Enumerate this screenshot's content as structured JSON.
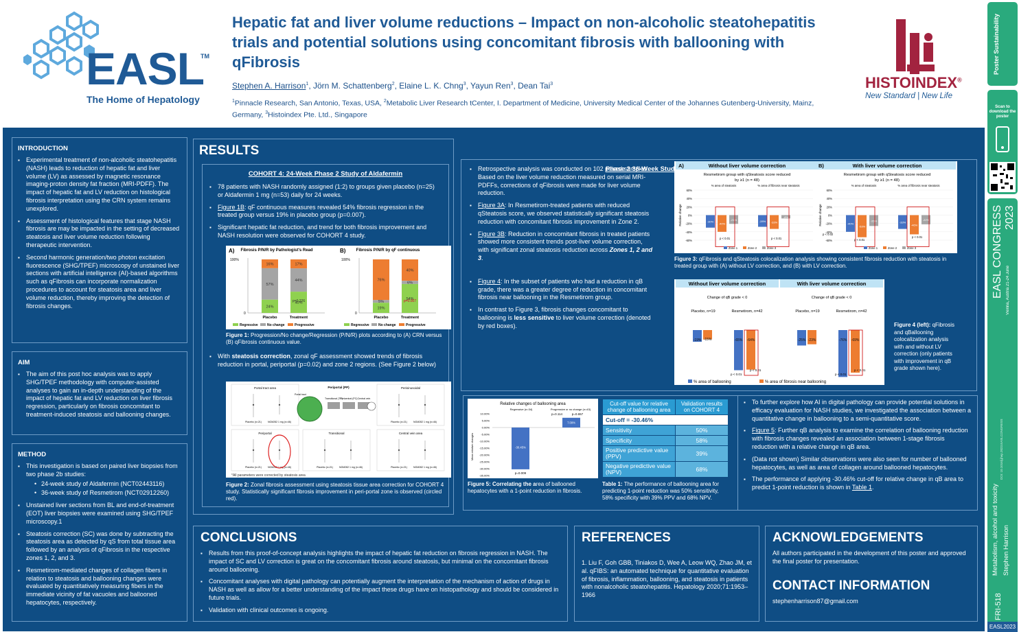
{
  "header": {
    "easl_text": "EASL",
    "easl_tm": "TM",
    "easl_tagline": "The Home of Hepatology",
    "title": "Hepatic fat and liver volume reductions – Impact on non-alcoholic steatohepatitis trials and potential solutions using concomitant fibrosis with ballooning with qFibrosis",
    "authors": [
      {
        "name": "Stephen A. Harrison",
        "sup": "1",
        "underline": true
      },
      {
        "name": ", Jörn M. Schattenberg",
        "sup": "2"
      },
      {
        "name": ", Elaine L. K. Chng",
        "sup": "3"
      },
      {
        "name": ", Yayun Ren",
        "sup": "3"
      },
      {
        "name": ", Dean Tai",
        "sup": "3"
      }
    ],
    "affil": [
      {
        "sup": "1",
        "text": "Pinnacle Research, San Antonio, Texas, USA, "
      },
      {
        "sup": "2",
        "text": "Metabolic Liver Research tCenter, I. Department of Medicine, University Medical Center of the Johannes Gutenberg-University, Mainz, Germany, "
      },
      {
        "sup": "3",
        "text": "Histoindex Pte. Ltd., Singapore"
      }
    ],
    "histo_name": "HISTOINDEX",
    "histo_reg": "®",
    "histo_tagline": "New Standard  |  New Life"
  },
  "sidebar": {
    "top_logo": "Poster Sustainability",
    "scan_text": "Scan to download the poster",
    "congress": "EASL CONGRESS 2023",
    "congress_sub": "Vienna, Austria 21-24 June",
    "doi": "DOI: 10.1016/j.jhep.2023.EASLCONGRESS",
    "topic": "Metabolism, alcohol and toxicity",
    "author": "Stephen Harrison",
    "code": "FRI-518",
    "year": "EASL2023"
  },
  "intro": {
    "heading": "INTRODUCTION",
    "items": [
      "Experimental treatment of non-alcoholic steatohepatitis (NASH) leads to reduction of hepatic fat and liver volume (LV) as assessed by magnetic resonance imaging-proton density fat fraction (MRI-PDFF). The impact of hepatic fat and LV reduction on histological fibrosis interpretation using the CRN system remains unexplored.",
      "Assessment of histological features that stage NASH fibrosis are may be impacted in the setting of decreased steatosis  and liver volume reduction following therapeutic intervention.",
      "Second harmonic generation/two photon excitation fluorescence (SHG/TPEF) microscopy of unstained liver sections with artificial intelligence (AI)-based algorithms such as qFibrosis can incorporate normalization procedures to account for steatosis area and liver volume reduction, thereby improving the detection of fibrosis changes."
    ]
  },
  "aim": {
    "heading": "AIM",
    "items": [
      "The aim of this post hoc analysis was to apply SHG/TPEF methodology with computer-assisted analyses to gain an in-depth understanding of the impact of hepatic fat and LV reduction on liver fibrosis regression, particularly on fibrosis concomitant to treatment-induced steatosis and ballooning changes."
    ]
  },
  "method": {
    "heading": "METHOD",
    "item1": "This investigation is based on paired liver biopsies from two phase 2b studies:",
    "sub": [
      "24-week study of Aldafermin (NCT02443116)",
      "36-week study of Resmetirom (NCT02912260)"
    ],
    "items": [
      "Unstained liver sections from BL and end-of-treatment (EOT) liver biopsies were examined using SHG/TPEF microscopy.1",
      "Steatosis correction (SC) was done by subtracting the steatosis area as detected by qS from total tissue area followed by an analysis of qFibrosis in the respective zones 1, 2, and 3.",
      "Resmetirom-mediated changes of collagen fibers in relation to steatosis and ballooning changes were evaluated by quantitatively measuring fibers in the immediate vicinity of fat vacuoles and ballooned hepatocytes, respectively."
    ]
  },
  "results": {
    "heading": "RESULTS",
    "cohort_title": "COHORT 4: 24-Week Phase 2 Study of Aldafermin",
    "c4_b1": "78 patients with NASH randomly assigned (1:2) to groups given placebo (n=25) or Aldafermin 1 mg (n=53) daily for 24 weeks.",
    "c4_b2_link": "Figure 1B",
    "c4_b2": ": qF continuous measures revealed 54% fibrosis regression in the treated group versus 19% in placebo group (p=0.007).",
    "c4_b3": "Significant hepatic fat reduction, and trend for both fibrosis improvement and NASH resolution were observed  for COHORT 4 study.",
    "fig1_caption_b": "Figure 1:",
    "fig1_caption": " Progression/No change/Regression (P/N/R) plots according to (A) CRN versus (B) qFibrosis continuous value.",
    "c4_b4_pre": "With ",
    "c4_b4_bold": "steatosis correction",
    "c4_b4": ", zonal qF assessment showed trends of fibrosis reduction in portal, periportal (p=0.02) and zone 2 regions. (See Figure 2 below)",
    "fig2_caption_b": "Figure 2:",
    "fig2_caption": " Zonal fibrosis assessment using steatosis tissue area correction for COHORT 4 study. Statistically significant fibrosis improvement in peri-portal zone is observed (circled red).",
    "fig2_note": "*All parameters were corrected by steatosis area"
  },
  "phase2": {
    "title": "Phase 2 36-Week Study of Resmetirom in Patients with NASH",
    "b1": "Retrospective analysis was conducted on 102 paired samples. Based on the liver volume reduction measured on serial MRI-PDFFs, corrections of qFibrosis were made for liver volume reduction.",
    "b2_link": "Figure 3A",
    "b2": ": In Resmetirom-treated patients with reduced qSteatosis score, we observed statistically significant steatosis reduction with concomitant fibrosis improvement in Zone 2.",
    "b3_link": "Figure 3B",
    "b3_pre": ": Reduction in concomitant fibrosis in treated patients showed more consistent trends post-liver volume correction, with significant zonal steatosis reduction across ",
    "b3_bold": "Zones 1, 2 and 3",
    "b3_post": ".",
    "b4_link": "Figure 4",
    "b4": ": In the subset of patients who had a reduction in qB grade, there was a greater degree of reduction in concomitant fibrosis near ballooning in the Resmetirom group.",
    "b5_pre": "In contrast to Figure 3, fibrosis changes concomitant to ballooning is ",
    "b5_bold": "less sensitive",
    "b5_post": " to liver volume correction (denoted by red boxes).",
    "fig3_caption_b": "Figure 3:",
    "fig3_caption": " qFibrosis and qSteatosis colocalization analysis showing consistent fibrosis reduction with steatosis in treated group with (A) without LV correction, and (B) with LV correction.",
    "fig4_caption_b": "Figure 4 (left):",
    "fig4_caption": " qFibrosis and qBallooning colocalization analysis with and without LV correction (only patients with improvement in qB grade shown here)."
  },
  "fig3": {
    "a_label": "A)",
    "a_title": "Without liver volume correction",
    "b_label": "B)",
    "b_title": "With liver volume correction",
    "chart_title": "Resmetirom group with qSteatosis score reduced by ≥1 (n = 48)",
    "sub1": "% area of steatosis",
    "sub2": "% area of fibrosis near steatosis",
    "ylabel": "Relative change",
    "yticks": [
      "60%",
      "40%",
      "20%",
      "0%",
      "-20%",
      "-40%",
      "-60%"
    ],
    "legend": [
      "Zone 1",
      "Zone 2",
      "Zone 3"
    ],
    "a_vals": [
      "-30%",
      "-40%",
      "-21%",
      "-28%",
      "-33%",
      "-8%"
    ],
    "b_vals": [
      "-40%",
      "-53%",
      "-26%",
      "-33%",
      "-46%",
      "-22%"
    ],
    "p_a": [
      "p < 0.01",
      "p < 0.01"
    ],
    "p_b": [
      "p < 0.02",
      "p < 0.01",
      "p < 0.01"
    ]
  },
  "fig4": {
    "left_title": "Without liver volume correction",
    "right_title": "With liver volume correction",
    "sub": "Change of qB grade < 0",
    "groups": [
      "Placebo, n=19",
      "Resmetirom, n=42"
    ],
    "left_vals": [
      "-19%",
      "-15%",
      "-65%",
      "-64%"
    ],
    "right_vals": [
      "-25%",
      "-23%",
      "-76%",
      "-69%"
    ],
    "p": "p < 0.01",
    "legend": [
      "% area of ballooning",
      "% area of fibrosis near ballooning"
    ]
  },
  "fig1": {
    "a_label": "A)",
    "a_title": "Fibrosis P/N/R by Pathologist's Read",
    "b_label": "B)",
    "b_title": "Fibrosis P/N/R by qF continuous",
    "y100": "100%",
    "y0": "0",
    "cats": [
      "Placebo",
      "Treatment"
    ],
    "a_pl": [
      "16%",
      "57%",
      "24%"
    ],
    "a_tr": [
      "17%",
      "44%",
      "40%"
    ],
    "a_p": "p=0.226",
    "b_pl": [
      "76%",
      "5%",
      "19%"
    ],
    "b_tr": [
      "40%",
      "6%",
      "54%"
    ],
    "b_p": "p=0.007",
    "legend": [
      "Regressive",
      "No change",
      "Progressive"
    ]
  },
  "fig2": {
    "panels": [
      "Portal tract area",
      "Periportal",
      "Transitional",
      "Perisinusoidal",
      "Central vein area",
      "Zone-2"
    ],
    "labels": [
      "Placebo (n=21)",
      "NGM282 1 mg (n=46)"
    ],
    "centre": [
      "Portal tract",
      "Periportal (PP)",
      "Transitional (TR)",
      "Pericentral (PC)",
      "Central vein"
    ]
  },
  "fig5": {
    "title": "Relative changes of ballooning area",
    "groups": [
      "Regressive (n=34)",
      "Progressive or no change (n=43)"
    ],
    "ylabel": "Mean relative changes",
    "yticks": [
      "10.00%",
      "5.00%",
      "0.00%",
      "-5.00%",
      "-10.00%",
      "-15.00%",
      "-20.00%",
      "-25.00%",
      "-30.00%",
      "-35.00%"
    ],
    "vals": [
      "-30.45%",
      "7.09%"
    ],
    "pvals": [
      "p=0.009",
      "p=0.114",
      "p=0.657"
    ],
    "caption_b": "Figure 5: Correlating the a",
    "caption": "rea of ballooned hepatocytes with a 1-point reduction in fibrosis."
  },
  "table1": {
    "h1": "Cut-off value for relative change of ballooning area",
    "h2": "Validation results on COHORT 4",
    "cutoff": "Cut-off = -30.46%",
    "rows": [
      [
        "Sensitivity",
        "50%"
      ],
      [
        "Specificity",
        "58%"
      ],
      [
        "Positive predictive value (PPV)",
        "39%"
      ],
      [
        "Negative predictive value (NPV)",
        "68%"
      ]
    ],
    "caption_b": "Table 1:",
    "caption": " The performance of ballooning area for predicting 1-point reduction was 50% sensitivity, 58% specificity with 39% PPV and 68% NPV."
  },
  "ai": {
    "b1": "To further explore how AI in digital pathology can provide potential solutions in efficacy evaluation for NASH studies, we investigated the association between a quantitative change in ballooning to a semi-quantitative score.",
    "b2_link": "Figure 5",
    "b2": ": Further qB analysis to examine the correlation of ballooning reduction with fibrosis changes revealed an association between 1-stage fibrosis reduction with a relative change in qB area.",
    "b3": "(Data not shown) Similar observations were also seen for number of ballooned hepatocytes, as well as area of collagen around ballooned hepatocytes.",
    "b4_pre": "The performance of applying  -30.46% cut-off  for relative change in qB area to predict 1-point reduction is shown in ",
    "b4_link": "Table 1",
    "b4_post": "."
  },
  "conclusions": {
    "heading": "CONCLUSIONS",
    "items": [
      "Results from this proof-of-concept analysis highlights the impact of hepatic fat reduction on fibrosis regression in NASH. The impact of SC and LV correction is great on the concomitant fibrosis around steatosis, but minimal on the concomitant fibrosis around ballooning.",
      "Concomitant analyses with digital pathology can potentially augment the interpretation of the mechanism of action of drugs in NASH as well as allow for a better understanding of the impact these drugs have on histopathology and should be considered in future trials.",
      "Validation with clinical outcomes is ongoing."
    ]
  },
  "references": {
    "heading": "REFERENCES",
    "text": "1. Liu F, Goh GBB, Tiniakos D, Wee A, Leow WQ, Zhao JM, et al. qFIBS: an automated technique for quantitative evaluation of fibrosis, inflammation, ballooning, and steatosis in patients with nonalcoholic steatohepatitis. Hepatology 2020;71:1953–1966"
  },
  "ack": {
    "heading": "ACKNOWLEDGEMENTS",
    "text": "All authors participated in the development of this poster and approved the final poster for presentation."
  },
  "contact": {
    "heading": "CONTACT INFORMATION",
    "email": "stephenharrison87@gmail.com"
  },
  "colors": {
    "navy": "#0f4d84",
    "blue": "#4472c4",
    "orange": "#ed7d31",
    "gray": "#a5a5a5",
    "green": "#8fd14f",
    "brand": "#1f5a96",
    "side_green": "#2aaa7d",
    "histo_red": "#a2233f"
  }
}
